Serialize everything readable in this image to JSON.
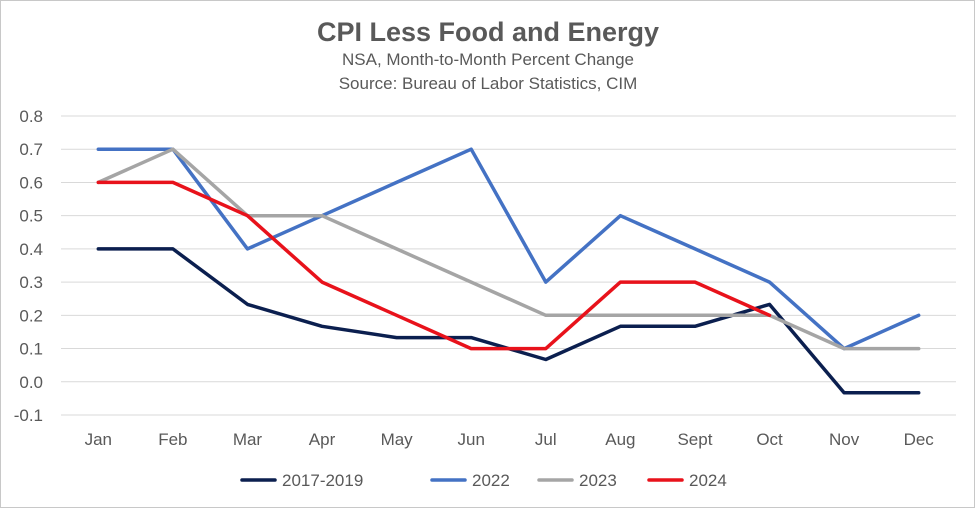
{
  "chart_data": {
    "type": "line",
    "title": "CPI Less Food and Energy",
    "subtitle_lines": [
      "NSA, Month-to-Month Percent Change",
      "Source: Bureau of Labor Statistics, CIM"
    ],
    "categories": [
      "Jan",
      "Feb",
      "Mar",
      "Apr",
      "May",
      "Jun",
      "Jul",
      "Aug",
      "Sept",
      "Oct",
      "Nov",
      "Dec"
    ],
    "ylim": [
      -0.1,
      0.8
    ],
    "yticks": [
      "0.8",
      "0.7",
      "0.6",
      "0.5",
      "0.4",
      "0.3",
      "0.2",
      "0.1",
      "0.0",
      "-0.1"
    ],
    "ytick_values": [
      0.8,
      0.7,
      0.6,
      0.5,
      0.4,
      0.3,
      0.2,
      0.1,
      0.0,
      -0.1
    ],
    "grid": true,
    "legend_position": "bottom",
    "series": [
      {
        "name": "2017-2019",
        "color": "#0b1f4f",
        "values": [
          0.4,
          0.4,
          0.233,
          0.167,
          0.133,
          0.133,
          0.067,
          0.167,
          0.167,
          0.233,
          -0.033,
          -0.033
        ]
      },
      {
        "name": "2022",
        "color": "#4472c4",
        "values": [
          0.7,
          0.7,
          0.4,
          0.5,
          0.6,
          0.7,
          0.3,
          0.5,
          0.4,
          0.3,
          0.1,
          0.2
        ]
      },
      {
        "name": "2023",
        "color": "#a5a5a5",
        "values": [
          0.6,
          0.7,
          0.5,
          0.5,
          0.4,
          0.3,
          0.2,
          0.2,
          0.2,
          0.2,
          0.1,
          0.1
        ]
      },
      {
        "name": "2024",
        "color": "#e8121b",
        "values": [
          0.6,
          0.6,
          0.5,
          0.3,
          0.2,
          0.1,
          0.1,
          0.3,
          0.3,
          0.2,
          null,
          null
        ]
      }
    ]
  }
}
